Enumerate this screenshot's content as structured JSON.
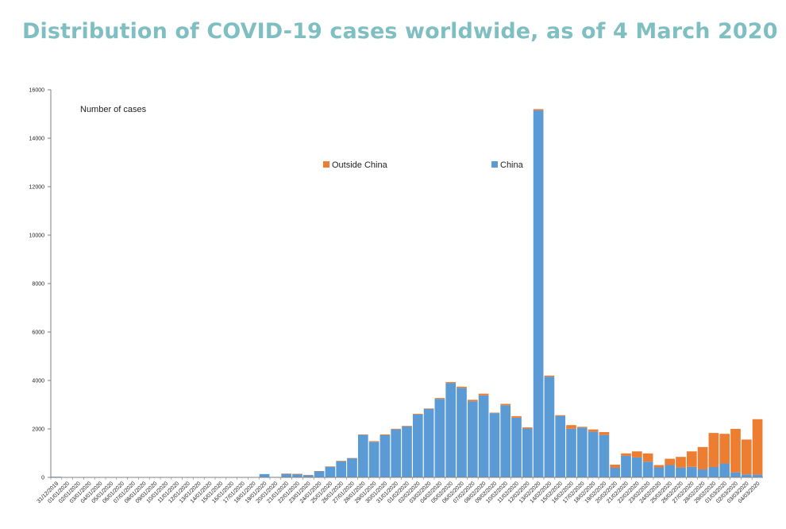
{
  "page": {
    "title": "Distribution of COVID-19 cases worldwide, as of 4 March 2020"
  },
  "colors": {
    "title": "#7fbfc2",
    "china": "#5b9bd5",
    "outside_china": "#ed7d31",
    "axis": "#808080"
  },
  "chart_data": {
    "type": "bar",
    "stacked": true,
    "title": "Distribution of COVID-19 cases worldwide, as of 4 March 2020",
    "ylabel": "Number of cases",
    "xlabel": "",
    "ylim": [
      0,
      16000
    ],
    "yticks": [
      0,
      2000,
      4000,
      6000,
      8000,
      10000,
      12000,
      14000,
      16000
    ],
    "grid": false,
    "legend_position": "top-center",
    "categories": [
      "31/12/2019",
      "01/01/2020",
      "02/01/2020",
      "03/01/2020",
      "04/01/2020",
      "05/01/2020",
      "06/01/2020",
      "07/01/2020",
      "08/01/2020",
      "09/01/2020",
      "10/01/2020",
      "11/01/2020",
      "12/01/2020",
      "13/01/2020",
      "14/01/2020",
      "15/01/2020",
      "16/01/2020",
      "17/01/2020",
      "18/01/2020",
      "19/01/2020",
      "20/01/2020",
      "21/01/2020",
      "22/01/2020",
      "23/01/2020",
      "24/01/2020",
      "25/01/2020",
      "26/01/2020",
      "27/01/2020",
      "28/01/2020",
      "29/01/2020",
      "30/01/2020",
      "31/01/2020",
      "01/02/2020",
      "02/02/2020",
      "03/02/2020",
      "04/02/2020",
      "05/02/2020",
      "06/02/2020",
      "07/02/2020",
      "08/02/2020",
      "09/02/2020",
      "10/02/2020",
      "11/02/2020",
      "12/02/2020",
      "13/02/2020",
      "14/02/2020",
      "15/02/2020",
      "16/02/2020",
      "17/02/2020",
      "18/02/2020",
      "19/02/2020",
      "20/02/2020",
      "21/02/2020",
      "22/02/2020",
      "23/02/2020",
      "24/02/2020",
      "25/02/2020",
      "26/02/2020",
      "27/02/2020",
      "28/02/2020",
      "29/02/2020",
      "01/03/2020",
      "02/03/2020",
      "03/03/2020",
      "04/03/2020"
    ],
    "series": [
      {
        "name": "China",
        "values": [
          27,
          0,
          0,
          17,
          0,
          15,
          0,
          0,
          0,
          0,
          0,
          0,
          0,
          0,
          0,
          0,
          0,
          0,
          4,
          136,
          19,
          151,
          140,
          97,
          259,
          441,
          665,
          787,
          1753,
          1466,
          1737,
          1981,
          2099,
          2590,
          2829,
          3235,
          3887,
          3694,
          3143,
          3385,
          2652,
          2973,
          2467,
          2015,
          15152,
          4152,
          2538,
          2007,
          2053,
          1889,
          1749,
          394,
          889,
          823,
          648,
          409,
          508,
          406,
          433,
          327,
          427,
          573,
          202,
          125,
          119
        ]
      },
      {
        "name": "Outside China",
        "values": [
          0,
          0,
          0,
          0,
          0,
          0,
          0,
          0,
          0,
          0,
          0,
          0,
          0,
          1,
          0,
          1,
          0,
          0,
          0,
          0,
          0,
          3,
          3,
          4,
          4,
          10,
          20,
          12,
          18,
          30,
          34,
          25,
          26,
          30,
          18,
          40,
          45,
          50,
          60,
          70,
          20,
          60,
          62,
          48,
          50,
          49,
          30,
          150,
          35,
          90,
          120,
          130,
          100,
          250,
          340,
          100,
          260,
          440,
          640,
          925,
          1405,
          1224,
          1800,
          1435,
          2282
        ]
      }
    ],
    "legend": [
      "Outside China",
      "China"
    ]
  }
}
